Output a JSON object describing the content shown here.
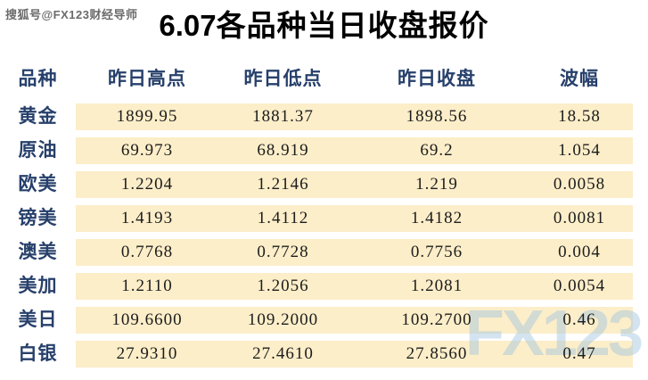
{
  "watermarks": {
    "top_left": "搜狐号@FX123财经导师",
    "bottom_right": "FX123"
  },
  "title": {
    "date": "6.07",
    "text": "各品种当日收盘报价"
  },
  "table": {
    "headers": [
      "品种",
      "昨日高点",
      "昨日低点",
      "昨日收盘",
      "波幅"
    ],
    "rows": [
      {
        "name": "黄金",
        "high": "1899.95",
        "low": "1881.37",
        "close": "1898.56",
        "range": "18.58"
      },
      {
        "name": "原油",
        "high": "69.973",
        "low": "68.919",
        "close": "69.2",
        "range": "1.054"
      },
      {
        "name": "欧美",
        "high": "1.2204",
        "low": "1.2146",
        "close": "1.219",
        "range": "0.0058"
      },
      {
        "name": "镑美",
        "high": "1.4193",
        "low": "1.4112",
        "close": "1.4182",
        "range": "0.0081"
      },
      {
        "name": "澳美",
        "high": "0.7768",
        "low": "0.7728",
        "close": "0.7756",
        "range": "0.004"
      },
      {
        "name": "美加",
        "high": "1.2110",
        "low": "1.2056",
        "close": "1.2081",
        "range": "0.0054"
      },
      {
        "name": "美日",
        "high": "109.6600",
        "low": "109.2000",
        "close": "109.2700",
        "range": "0.46"
      },
      {
        "name": "白银",
        "high": "27.9310",
        "low": "27.4610",
        "close": "27.8560",
        "range": "0.47"
      }
    ]
  },
  "chart_data": {
    "type": "table",
    "title": "6.07各品种当日收盘报价",
    "columns": [
      "品种",
      "昨日高点",
      "昨日低点",
      "昨日收盘",
      "波幅"
    ],
    "rows": [
      [
        "黄金",
        1899.95,
        1881.37,
        1898.56,
        18.58
      ],
      [
        "原油",
        69.973,
        68.919,
        69.2,
        1.054
      ],
      [
        "欧美",
        1.2204,
        1.2146,
        1.219,
        0.0058
      ],
      [
        "镑美",
        1.4193,
        1.4112,
        1.4182,
        0.0081
      ],
      [
        "澳美",
        0.7768,
        0.7728,
        0.7756,
        0.004
      ],
      [
        "美加",
        1.211,
        1.2056,
        1.2081,
        0.0054
      ],
      [
        "美日",
        109.66,
        109.2,
        109.27,
        0.46
      ],
      [
        "白银",
        27.931,
        27.461,
        27.856,
        0.47
      ]
    ]
  },
  "colors": {
    "row_band": "#FCEEC9",
    "header_text": "#27406B",
    "number_text": "#1C1C1C",
    "title_text": "#000000",
    "watermark_blue": "#9FC4E0"
  }
}
